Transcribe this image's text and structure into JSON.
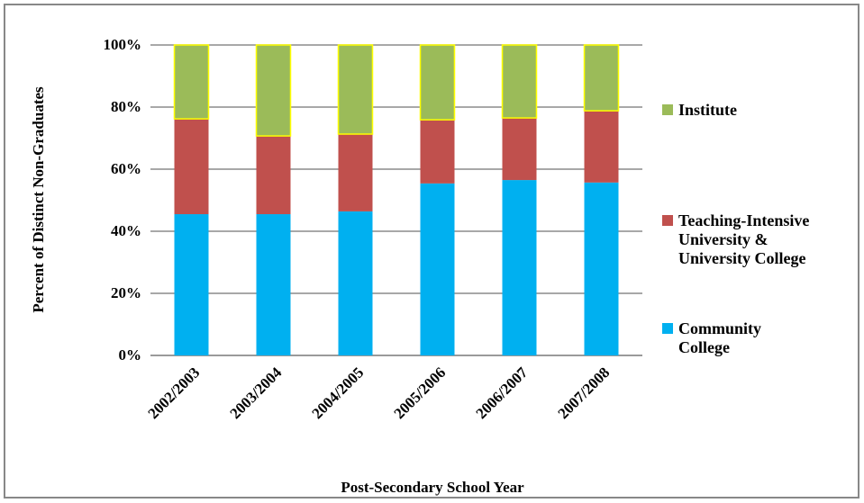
{
  "chart_data": {
    "type": "stacked-bar",
    "x_label": "Post-Secondary School Year",
    "y_label": "Percent of Distinct Non-Graduates",
    "categories": [
      "2002/2003",
      "2003/2004",
      "2004/2005",
      "2005/2006",
      "2006/2007",
      "2007/2008"
    ],
    "series": [
      {
        "name": "Community College",
        "color": "#00b0f0",
        "values": [
          45.5,
          45.5,
          46.4,
          55.4,
          56.5,
          55.7
        ]
      },
      {
        "name": "Teaching-Intensive University & University College",
        "color": "#c0504d",
        "values": [
          30.7,
          25.2,
          24.9,
          20.5,
          20.0,
          23.1
        ]
      },
      {
        "name": "Institute",
        "color": "#9bbb59",
        "stroke": "#ffff00",
        "values": [
          23.8,
          29.3,
          28.7,
          24.1,
          23.5,
          21.2
        ]
      }
    ],
    "ylim": [
      0,
      100
    ],
    "yticks": [
      {
        "value": 0,
        "label": "0%"
      },
      {
        "value": 20,
        "label": "20%"
      },
      {
        "value": 40,
        "label": "40%"
      },
      {
        "value": 60,
        "label": "60%"
      },
      {
        "value": 80,
        "label": "80%"
      },
      {
        "value": 100,
        "label": "100%"
      }
    ],
    "grid": true,
    "legend": "right"
  }
}
